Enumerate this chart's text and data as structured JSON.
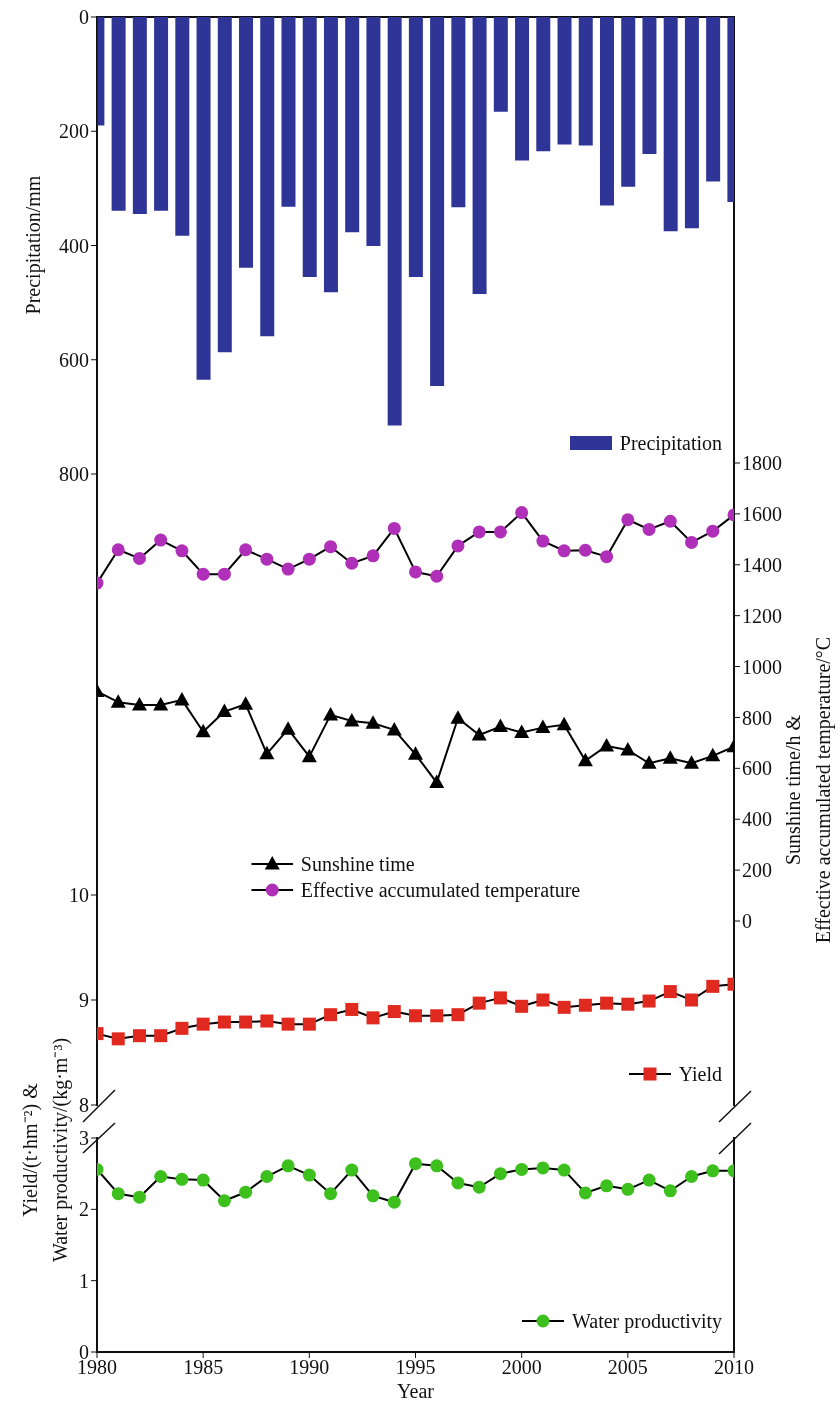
{
  "chart_data": [
    {
      "type": "bar",
      "ylabel": "Precipitation/mm",
      "x": [
        1980,
        1981,
        1982,
        1983,
        1984,
        1985,
        1986,
        1987,
        1988,
        1989,
        1990,
        1991,
        1992,
        1993,
        1994,
        1995,
        1996,
        1997,
        1998,
        1999,
        2000,
        2001,
        2002,
        2003,
        2004,
        2005,
        2006,
        2007,
        2008,
        2009,
        2010
      ],
      "xlim": [
        1980,
        2010
      ],
      "ylim": [
        800,
        0
      ],
      "yticks": [
        0,
        200,
        400,
        600,
        800
      ],
      "tick_labels": "y",
      "legend": "bottom right",
      "series": [
        {
          "name": "Precipitation",
          "color": "#2e3597",
          "values": [
            190,
            339,
            345,
            339,
            383,
            635,
            587,
            439,
            559,
            332,
            455,
            482,
            377,
            401,
            715,
            455,
            646,
            333,
            485,
            166,
            251,
            235,
            223,
            225,
            330,
            297,
            240,
            375,
            370,
            288,
            324
          ]
        }
      ]
    },
    {
      "type": "line",
      "y2label": "Sunshine time/h &\nEffective accumulated temperature/°C",
      "x": [
        1980,
        1981,
        1982,
        1983,
        1984,
        1985,
        1986,
        1987,
        1988,
        1989,
        1990,
        1991,
        1992,
        1993,
        1994,
        1995,
        1996,
        1997,
        1998,
        1999,
        2000,
        2001,
        2002,
        2003,
        2004,
        2005,
        2006,
        2007,
        2008,
        2009,
        2010
      ],
      "xlim": [
        1980,
        2010
      ],
      "y2lim": [
        0,
        1800
      ],
      "y2ticks": [
        0,
        200,
        400,
        600,
        800,
        1000,
        1200,
        1400,
        1600,
        1800
      ],
      "tick_labels": "y",
      "legend": "bottom",
      "series": [
        {
          "name": "Sunshine time",
          "color": "#000000",
          "marker": "triangle",
          "axis": "y2",
          "values": [
            902,
            860,
            849,
            849,
            869,
            744,
            823,
            852,
            657,
            754,
            646,
            810,
            786,
            777,
            751,
            655,
            544,
            797,
            731,
            764,
            741,
            760,
            771,
            630,
            688,
            672,
            620,
            640,
            620,
            649,
            685
          ]
        },
        {
          "name": "Effective accumulated temperature",
          "color": "#b02fb8",
          "marker": "circle",
          "axis": "y2",
          "values": [
            1328,
            1459,
            1425,
            1497,
            1455,
            1363,
            1363,
            1459,
            1422,
            1383,
            1422,
            1471,
            1406,
            1435,
            1543,
            1372,
            1355,
            1474,
            1529,
            1529,
            1605,
            1493,
            1455,
            1457,
            1432,
            1577,
            1539,
            1571,
            1488,
            1532,
            1596
          ]
        }
      ]
    },
    {
      "type": "line",
      "x": [
        1980,
        1981,
        1982,
        1983,
        1984,
        1985,
        1986,
        1987,
        1988,
        1989,
        1990,
        1991,
        1992,
        1993,
        1994,
        1995,
        1996,
        1997,
        1998,
        1999,
        2000,
        2001,
        2002,
        2003,
        2004,
        2005,
        2006,
        2007,
        2008,
        2009,
        2010
      ],
      "xlim": [
        1980,
        2010
      ],
      "ylim": [
        8,
        10
      ],
      "yticks": [
        8,
        9,
        10
      ],
      "tick_labels": "y",
      "legend": "bottom right",
      "series": [
        {
          "name": "Yield",
          "color": "#e02a1f",
          "marker": "square",
          "values": [
            8.68,
            8.63,
            8.66,
            8.66,
            8.73,
            8.77,
            8.79,
            8.79,
            8.8,
            8.77,
            8.77,
            8.86,
            8.91,
            8.83,
            8.89,
            8.85,
            8.85,
            8.86,
            8.97,
            9.02,
            8.94,
            9.0,
            8.93,
            8.95,
            8.97,
            8.96,
            8.99,
            9.08,
            9.0,
            9.13,
            9.15
          ]
        }
      ]
    },
    {
      "type": "line",
      "xlabel": "Year",
      "ylabel": "Yield/(t·hm⁻²) &\nWater productivity/(kg·m⁻³)",
      "x": [
        1980,
        1981,
        1982,
        1983,
        1984,
        1985,
        1986,
        1987,
        1988,
        1989,
        1990,
        1991,
        1992,
        1993,
        1994,
        1995,
        1996,
        1997,
        1998,
        1999,
        2000,
        2001,
        2002,
        2003,
        2004,
        2005,
        2006,
        2007,
        2008,
        2009,
        2010
      ],
      "xlim": [
        1980,
        2010
      ],
      "xticks": [
        1980,
        1985,
        1990,
        1995,
        2000,
        2005,
        2010
      ],
      "ylim": [
        0,
        3
      ],
      "yticks": [
        0,
        1,
        2,
        3
      ],
      "legend": "bottom right",
      "series": [
        {
          "name": "Water productivity",
          "color": "#3dbf1d",
          "marker": "circle",
          "values": [
            2.56,
            2.22,
            2.17,
            2.46,
            2.42,
            2.41,
            2.12,
            2.24,
            2.46,
            2.61,
            2.48,
            2.22,
            2.55,
            2.19,
            2.1,
            2.64,
            2.61,
            2.37,
            2.31,
            2.5,
            2.56,
            2.58,
            2.55,
            2.23,
            2.33,
            2.28,
            2.41,
            2.26,
            2.46,
            2.54,
            2.54
          ]
        }
      ]
    }
  ]
}
